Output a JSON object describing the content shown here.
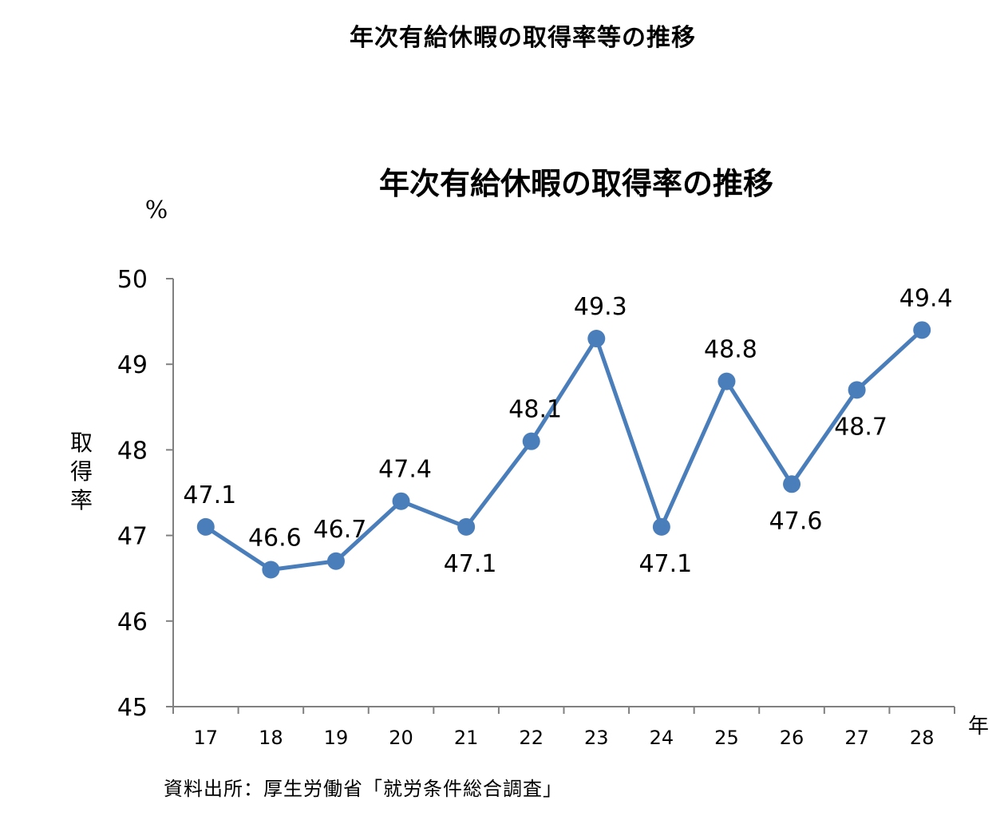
{
  "page_title": "年次有給休暇の取得率等の推移",
  "source_note": "資料出所：厚生労働省「就労条件総合調査」",
  "colors": {
    "line": "#4A7EBB",
    "marker": "#4A7EBB",
    "axis": "#808080",
    "text": "#000000"
  },
  "chart_data": {
    "type": "line",
    "title": "年次有給休暇の取得率の推移",
    "unit_label": "%",
    "ylabel": "取得率",
    "xlabel": "年",
    "ylim": [
      45,
      50
    ],
    "yticks": [
      "45",
      "46",
      "47",
      "48",
      "49",
      "50"
    ],
    "categories": [
      "17",
      "18",
      "19",
      "20",
      "21",
      "22",
      "23",
      "24",
      "25",
      "26",
      "27",
      "28"
    ],
    "series": [
      {
        "values": [
          47.1,
          46.6,
          46.7,
          47.4,
          47.1,
          48.1,
          49.3,
          47.1,
          48.8,
          47.6,
          48.7,
          49.4
        ]
      }
    ],
    "data_labels": [
      "47.1",
      "46.6",
      "46.7",
      "47.4",
      "47.1",
      "48.1",
      "49.3",
      "47.1",
      "48.8",
      "47.6",
      "48.7",
      "49.4"
    ],
    "label_positions": [
      "above",
      "above",
      "above",
      "above",
      "below",
      "above",
      "above",
      "below",
      "above",
      "below",
      "below",
      "above"
    ],
    "grid": false,
    "legend": "none"
  }
}
